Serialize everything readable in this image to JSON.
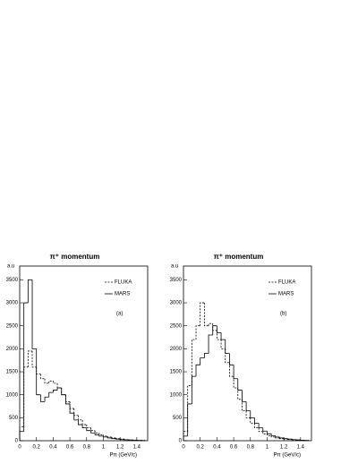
{
  "chart_data": [
    {
      "type": "histogram",
      "title": "π⁺ momentum",
      "y_label": "a.u",
      "x_label": "Pπ (GeV/c)",
      "annotation": "(a)",
      "bins": [
        0,
        0.05,
        0.1,
        0.15,
        0.2,
        0.25,
        0.3,
        0.35,
        0.4,
        0.45,
        0.5,
        0.55,
        0.6,
        0.65,
        0.7,
        0.75,
        0.8,
        0.85,
        0.9,
        0.95,
        1.0,
        1.05,
        1.1,
        1.15,
        1.2,
        1.25,
        1.3,
        1.35,
        1.4,
        1.45,
        1.5
      ],
      "series": [
        {
          "name": "FLUKA",
          "color": "#000000",
          "dash": true,
          "values": [
            300,
            1600,
            1950,
            1600,
            1450,
            1350,
            1250,
            1300,
            1250,
            1150,
            1000,
            850,
            700,
            550,
            450,
            350,
            280,
            220,
            170,
            130,
            100,
            80,
            60,
            45,
            35,
            25,
            20,
            15,
            10,
            8
          ]
        },
        {
          "name": "MARS",
          "color": "#000000",
          "dash": false,
          "values": [
            200,
            3000,
            3500,
            2000,
            1000,
            850,
            950,
            1050,
            1100,
            1150,
            1000,
            800,
            600,
            450,
            350,
            280,
            220,
            170,
            130,
            100,
            80,
            60,
            45,
            35,
            25,
            20,
            15,
            10,
            8,
            5
          ]
        }
      ],
      "xlim": [
        0,
        1.53
      ],
      "ylim": [
        0,
        3800
      ],
      "xticks": [
        0,
        0.2,
        0.4,
        0.6,
        0.8,
        1,
        1.2,
        1.4
      ],
      "yticks": [
        0,
        500,
        1000,
        1500,
        2000,
        2500,
        3000,
        3500
      ]
    },
    {
      "type": "histogram",
      "title": "π⁺ momentum",
      "y_label": "a.u",
      "x_label": "Pπ (GeV/c)",
      "annotation": "(b)",
      "bins": [
        0,
        0.05,
        0.1,
        0.15,
        0.2,
        0.25,
        0.3,
        0.35,
        0.4,
        0.45,
        0.5,
        0.55,
        0.6,
        0.65,
        0.7,
        0.75,
        0.8,
        0.85,
        0.9,
        0.95,
        1.0,
        1.05,
        1.1,
        1.15,
        1.2,
        1.25,
        1.3,
        1.35,
        1.4,
        1.45,
        1.5
      ],
      "series": [
        {
          "name": "FLUKA",
          "color": "#000000",
          "dash": true,
          "values": [
            200,
            1200,
            2200,
            2500,
            3000,
            2500,
            2550,
            2400,
            2200,
            2000,
            1700,
            1400,
            1150,
            900,
            650,
            500,
            380,
            280,
            200,
            150,
            110,
            80,
            60,
            45,
            35,
            25,
            18,
            12,
            8,
            5
          ]
        },
        {
          "name": "MARS",
          "color": "#000000",
          "dash": false,
          "values": [
            100,
            800,
            1400,
            1650,
            1800,
            1900,
            2300,
            2500,
            2350,
            2200,
            1900,
            1650,
            1350,
            1100,
            850,
            650,
            500,
            380,
            280,
            210,
            150,
            110,
            80,
            60,
            45,
            35,
            25,
            18,
            12,
            8
          ]
        }
      ],
      "xlim": [
        0,
        1.53
      ],
      "ylim": [
        0,
        3800
      ],
      "xticks": [
        0,
        0.2,
        0.4,
        0.6,
        0.8,
        1,
        1.2,
        1.4
      ],
      "yticks": [
        0,
        500,
        1000,
        1500,
        2000,
        2500,
        3000,
        3500
      ]
    }
  ]
}
